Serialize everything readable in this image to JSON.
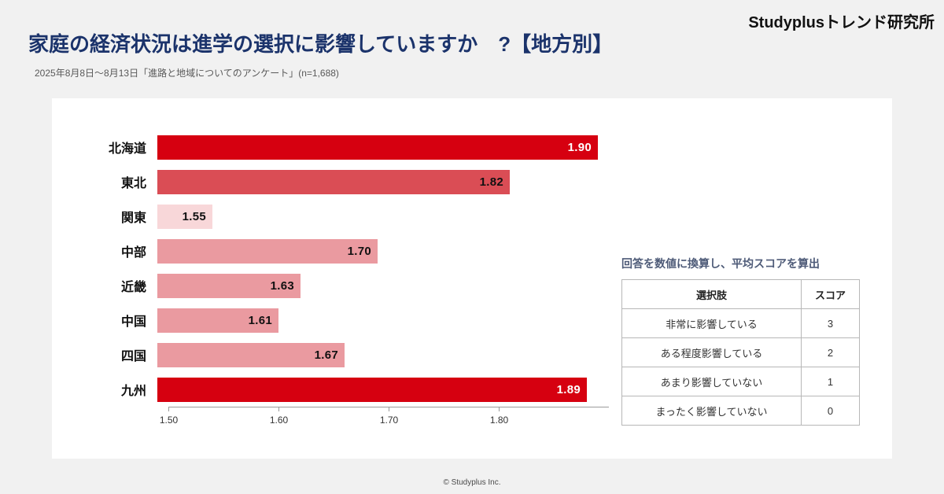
{
  "header": {
    "brand": "Studyplusトレンド研究所",
    "title": "家庭の経済状況は進学の選択に影響していますか　?【地方別】",
    "subtitle": "2025年8月8日～8月13日「進路と地域についてのアンケート」(n=1,688)"
  },
  "chart_data": {
    "type": "bar",
    "orientation": "horizontal",
    "title": "家庭の経済状況は進学の選択に影響していますか【地方別】",
    "categories": [
      "北海道",
      "東北",
      "関東",
      "中部",
      "近畿",
      "中国",
      "四国",
      "九州"
    ],
    "values": [
      1.9,
      1.82,
      1.55,
      1.7,
      1.63,
      1.61,
      1.67,
      1.89
    ],
    "value_labels": [
      "1.90",
      "1.82",
      "1.55",
      "1.70",
      "1.63",
      "1.61",
      "1.67",
      "1.89"
    ],
    "bar_colors": [
      "#d60010",
      "#da4d55",
      "#f8d7d9",
      "#ea9aa0",
      "#ea9aa0",
      "#ea9aa0",
      "#ea9aa0",
      "#d60010"
    ],
    "value_label_colors": [
      "#ffffff",
      "#111111",
      "#111111",
      "#111111",
      "#111111",
      "#111111",
      "#111111",
      "#ffffff"
    ],
    "xlim": [
      1.5,
      1.9
    ],
    "x_ticks": [
      "1.50",
      "1.60",
      "1.70",
      "1.80"
    ],
    "x_tick_values": [
      1.5,
      1.6,
      1.7,
      1.8
    ],
    "grid": false,
    "legend": false
  },
  "score_table": {
    "note": "回答を数値に換算し、平均スコアを算出",
    "headers": [
      "選択肢",
      "スコア"
    ],
    "rows": [
      [
        "非常に影響している",
        "3"
      ],
      [
        "ある程度影響している",
        "2"
      ],
      [
        "あまり影響していない",
        "1"
      ],
      [
        "まったく影響していない",
        "0"
      ]
    ]
  },
  "footer": {
    "copyright": "© Studyplus Inc."
  }
}
